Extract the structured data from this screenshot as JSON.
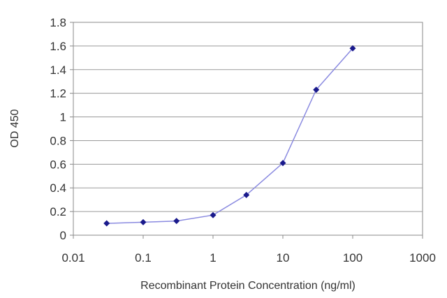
{
  "chart_data": {
    "type": "line",
    "title": "",
    "xlabel": "Recombinant Protein Concentration (ng/ml)",
    "ylabel": "OD 450",
    "x_scale": "log",
    "xlim": [
      0.01,
      1000
    ],
    "ylim": [
      0,
      1.8
    ],
    "x_ticks": [
      "0.01",
      "0.1",
      "1",
      "10",
      "100",
      "1000"
    ],
    "y_ticks": [
      "0",
      "0.2",
      "0.4",
      "0.6",
      "0.8",
      "1",
      "1.2",
      "1.4",
      "1.6",
      "1.8"
    ],
    "grid": "horizontal",
    "legend": "none",
    "series": [
      {
        "x": [
          0.03,
          0.1,
          0.3,
          1,
          3,
          10,
          30,
          100
        ],
        "values": [
          0.1,
          0.11,
          0.12,
          0.17,
          0.34,
          0.61,
          1.23,
          1.58
        ],
        "line_color": "#8a8ae0",
        "marker_color": "#1a1a8c"
      }
    ]
  }
}
